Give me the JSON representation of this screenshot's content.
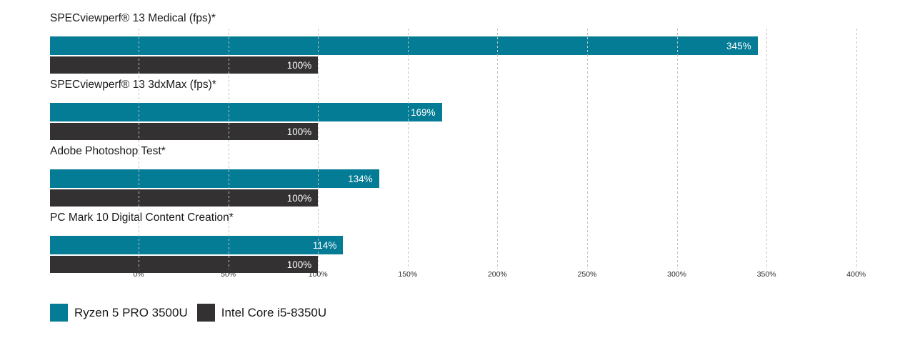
{
  "chart_data": {
    "type": "bar",
    "orientation": "horizontal",
    "categories": [
      "SPECviewperf® 13 Medical (fps)*",
      "SPECviewperf® 13 3dxMax (fps)*",
      "Adobe Photoshop Test*",
      "PC Mark 10 Digital Content Creation*"
    ],
    "series": [
      {
        "name": "Ryzen 5 PRO 3500U",
        "color": "#047C96",
        "values": [
          345,
          169,
          134,
          114
        ],
        "labels": [
          "345%",
          "169%",
          "134%",
          "114%"
        ]
      },
      {
        "name": "Intel Core i5-8350U",
        "color": "#333132",
        "values": [
          100,
          100,
          100,
          100
        ],
        "labels": [
          "100%",
          "100%",
          "100%",
          " 100%"
        ]
      }
    ],
    "x_axis": {
      "ticks": [
        0,
        50,
        100,
        150,
        200,
        250,
        300,
        350,
        400
      ],
      "tick_labels": [
        "0%",
        "50%",
        "100%",
        "150%",
        "200%",
        "250%",
        "300%",
        "350%",
        "400%"
      ],
      "xlim": [
        -49.4,
        402.1
      ],
      "grid": "vertical-dashed"
    },
    "legend": {
      "position": "bottom-left",
      "items": [
        {
          "label": "Ryzen 5 PRO 3500U",
          "color": "#047C96"
        },
        {
          "label": "Intel Core i5-8350U",
          "color": "#333132"
        }
      ]
    },
    "colors": {
      "background": "#ffffff",
      "gridline": "#c2c2c2",
      "bar_value_text": "#ffffff",
      "title_text": "#191919"
    }
  }
}
